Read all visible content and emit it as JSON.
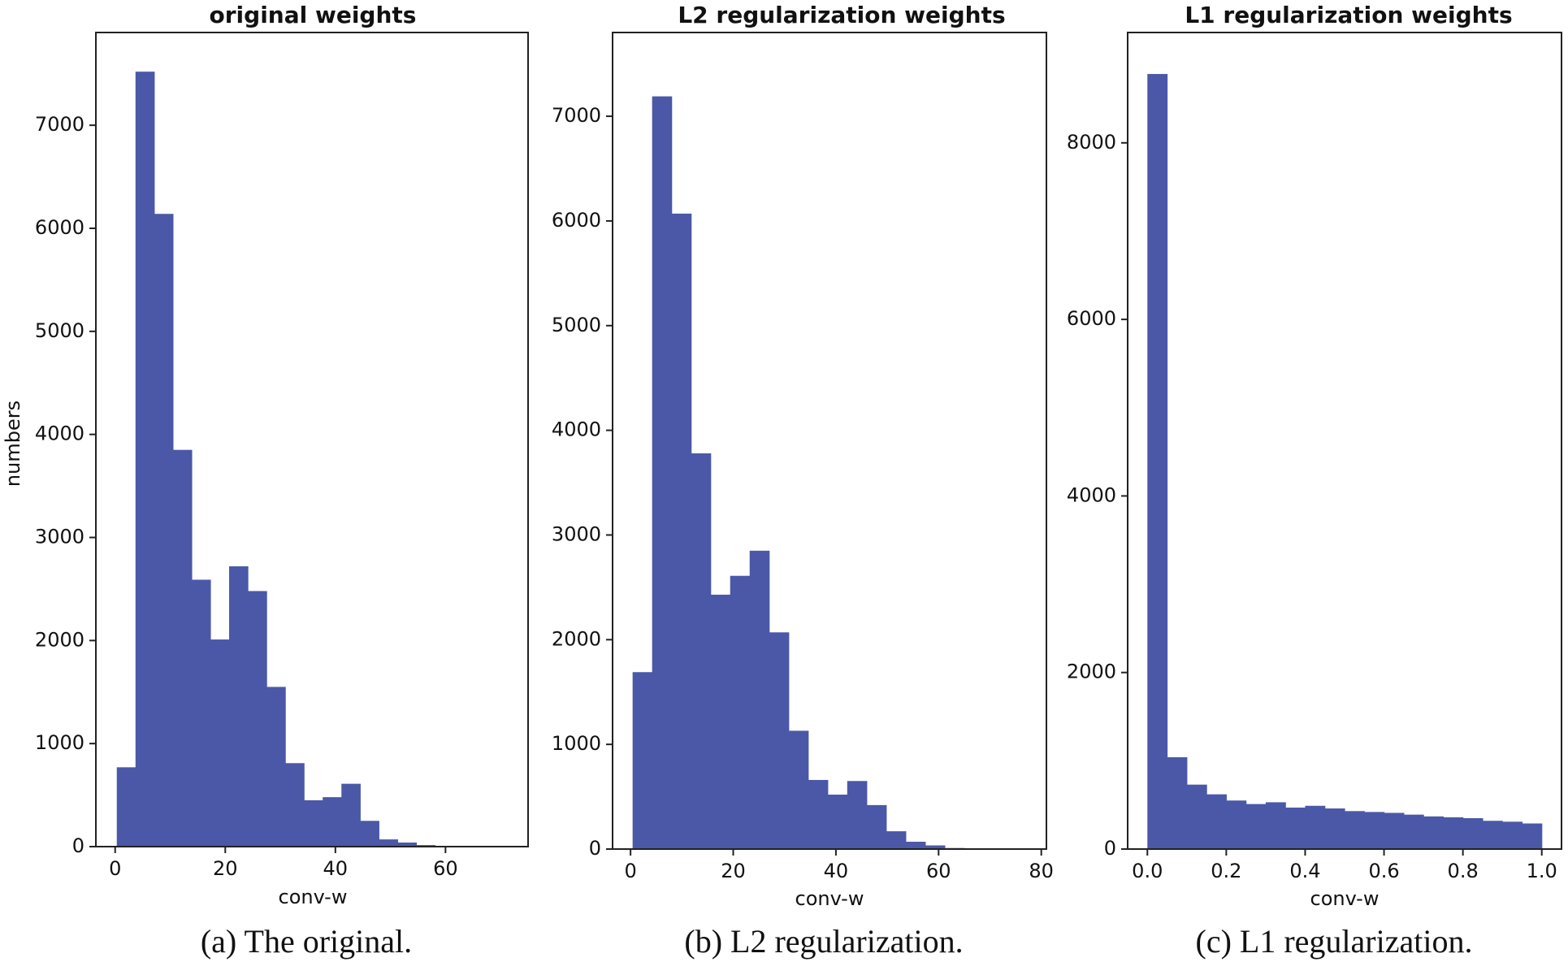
{
  "chart_data": [
    {
      "type": "bar",
      "title": "original weights",
      "xlabel": "conv-w",
      "ylabel": "numbers",
      "caption": "(a)  The original.",
      "color": "#4b58a8",
      "xlim": [
        -3.5,
        75
      ],
      "ylim": [
        0,
        7900
      ],
      "xticks": [
        0,
        20,
        40,
        60
      ],
      "xtick_labels": [
        "0",
        "20",
        "40",
        "60"
      ],
      "yticks": [
        0,
        1000,
        2000,
        3000,
        4000,
        5000,
        6000,
        7000
      ],
      "ytick_labels": [
        "0",
        "1000",
        "2000",
        "3000",
        "4000",
        "5000",
        "6000",
        "7000"
      ],
      "bin_start": 0.3,
      "bin_width": 3.4,
      "values": [
        770,
        7520,
        6140,
        3850,
        2590,
        2010,
        2720,
        2480,
        1550,
        810,
        450,
        480,
        610,
        250,
        70,
        40,
        15,
        5,
        3,
        2,
        0,
        0
      ]
    },
    {
      "type": "bar",
      "title": "L2 regularization weights",
      "xlabel": "conv-w",
      "ylabel": "",
      "caption": "(b)  L2 regularization.",
      "color": "#4b58a8",
      "xlim": [
        -3.5,
        81
      ],
      "ylim": [
        0,
        7800
      ],
      "xticks": [
        0,
        20,
        40,
        60,
        80
      ],
      "xtick_labels": [
        "0",
        "20",
        "40",
        "60",
        "80"
      ],
      "yticks": [
        0,
        1000,
        2000,
        3000,
        4000,
        5000,
        6000,
        7000
      ],
      "ytick_labels": [
        "0",
        "1000",
        "2000",
        "3000",
        "4000",
        "5000",
        "6000",
        "7000"
      ],
      "bin_start": 0.4,
      "bin_width": 3.8,
      "values": [
        1690,
        7190,
        6070,
        3780,
        2430,
        2610,
        2850,
        2070,
        1130,
        660,
        520,
        650,
        420,
        170,
        70,
        35,
        10,
        4,
        2,
        0
      ]
    },
    {
      "type": "bar",
      "title": "L1 regularization weights",
      "xlabel": "conv-w",
      "ylabel": "",
      "caption": "(c)  L1 regularization.",
      "color": "#4b58a8",
      "xlim": [
        -0.05,
        1.05
      ],
      "ylim": [
        0,
        9250
      ],
      "xticks": [
        0.0,
        0.2,
        0.4,
        0.6,
        0.8,
        1.0
      ],
      "xtick_labels": [
        "0.0",
        "0.2",
        "0.4",
        "0.6",
        "0.8",
        "1.0"
      ],
      "yticks": [
        0,
        2000,
        4000,
        6000,
        8000
      ],
      "ytick_labels": [
        "0",
        "2000",
        "4000",
        "6000",
        "8000"
      ],
      "bin_start": 0.0,
      "bin_width": 0.05,
      "values": [
        8780,
        1040,
        730,
        620,
        550,
        510,
        530,
        470,
        490,
        460,
        430,
        420,
        410,
        390,
        370,
        360,
        350,
        320,
        310,
        290
      ]
    }
  ]
}
